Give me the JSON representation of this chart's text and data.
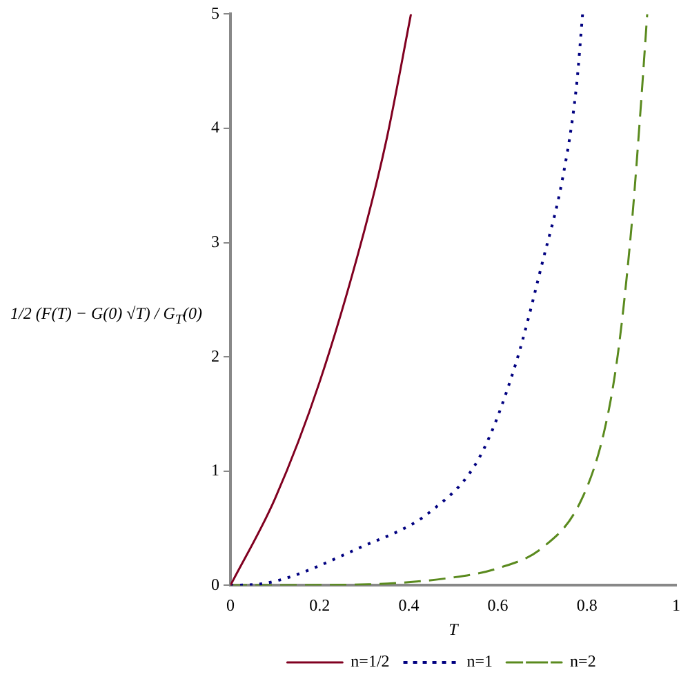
{
  "chart_data": {
    "type": "line",
    "xlabel": "T",
    "ylabel": "1/2 (F(T) − G(0) √T) / G$_{T}$(0)",
    "xlim": [
      0,
      1
    ],
    "ylim": [
      0,
      5
    ],
    "xticks": [
      0,
      0.2,
      0.4,
      0.6,
      0.8,
      1
    ],
    "yticks": [
      0,
      1,
      2,
      3,
      4,
      5
    ],
    "grid": false,
    "legend": "bottom",
    "marker": "none",
    "series": [
      {
        "name": "n=1/2",
        "color": "#800020",
        "line_style": "solid",
        "x": [
          0,
          0.1,
          0.2,
          0.3,
          0.35,
          0.405
        ],
        "values": [
          0,
          0.76,
          1.78,
          3.1,
          3.9,
          5
        ]
      },
      {
        "name": "n=1",
        "color": "#000080",
        "line_style": "dotted",
        "x": [
          0,
          0.08,
          0.29,
          0.45,
          0.56,
          0.64,
          0.7,
          0.745,
          0.776,
          0.79
        ],
        "values": [
          0,
          0.02,
          0.33,
          0.65,
          1.13,
          1.94,
          2.83,
          3.56,
          4.36,
          5
        ]
      },
      {
        "name": "n=2",
        "color": "#5a8a1e",
        "line_style": "dashed",
        "x": [
          0,
          0.31,
          0.5,
          0.6,
          0.7,
          0.785,
          0.838,
          0.869,
          0.9,
          0.92,
          0.935
        ],
        "values": [
          0,
          0.01,
          0.07,
          0.15,
          0.33,
          0.73,
          1.34,
          2.02,
          3.15,
          4.16,
          5
        ]
      }
    ]
  }
}
